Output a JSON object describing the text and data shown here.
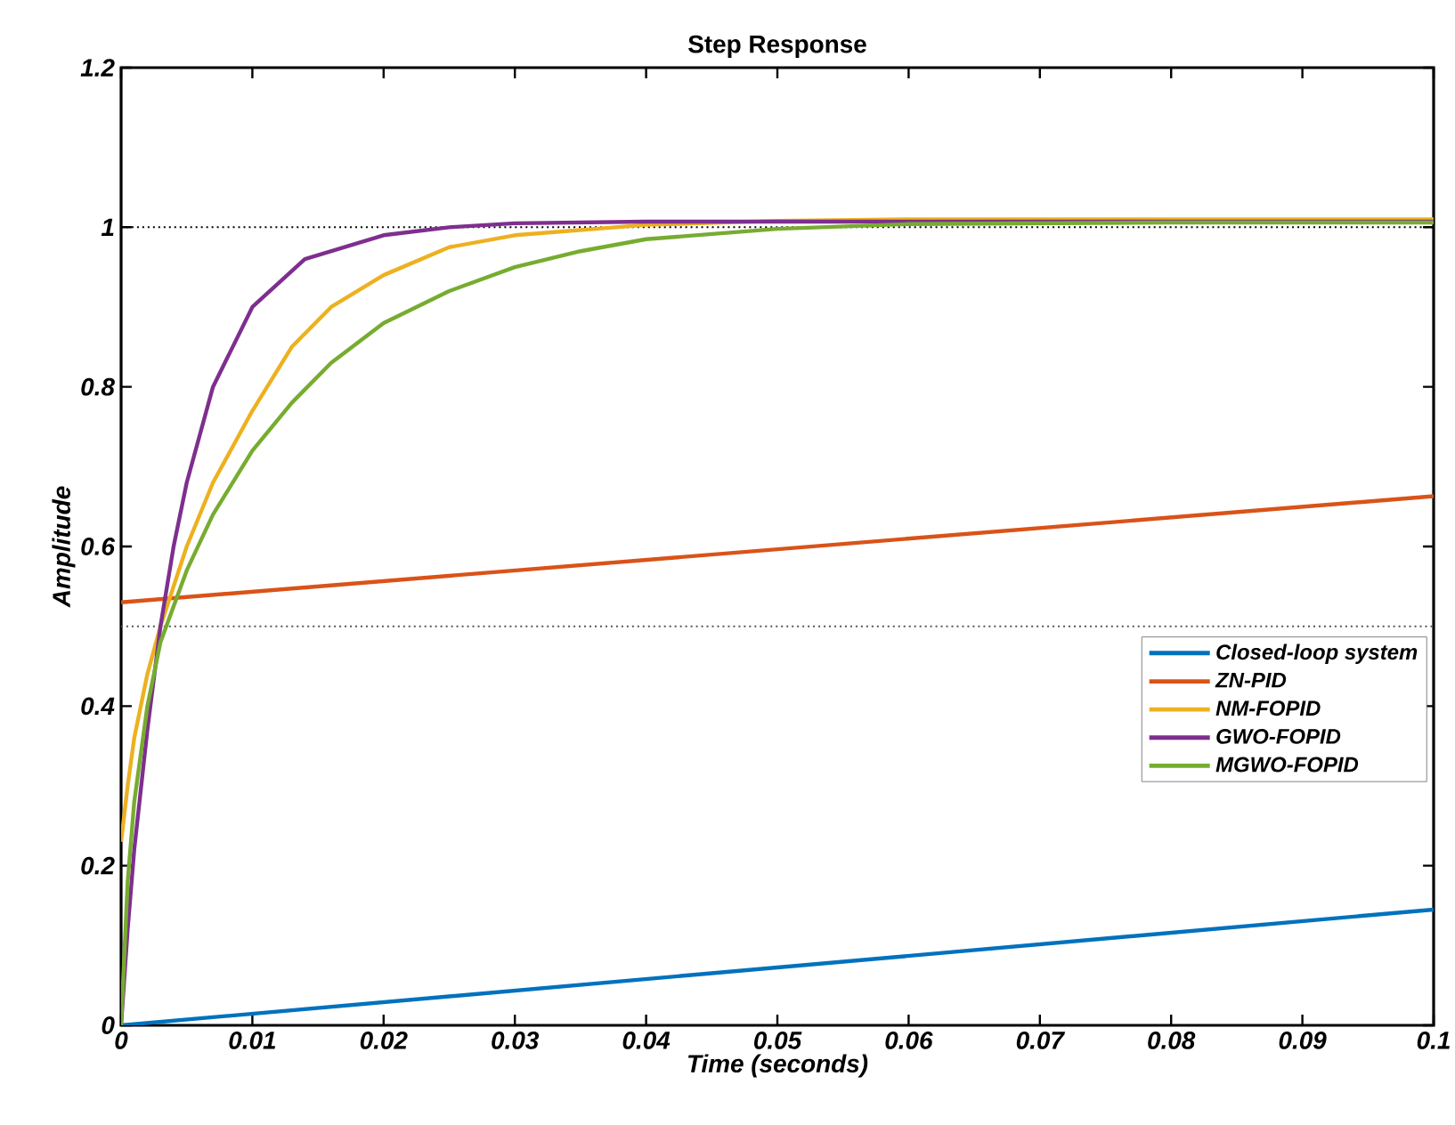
{
  "chart_data": {
    "type": "line",
    "title": "Step Response",
    "xlabel": "Time (seconds)",
    "ylabel": "Amplitude",
    "xlim": [
      0,
      0.1
    ],
    "ylim": [
      0,
      1.2
    ],
    "xticks": [
      0,
      0.01,
      0.02,
      0.03,
      0.04,
      0.05,
      0.06,
      0.07,
      0.08,
      0.09,
      0.1
    ],
    "yticks": [
      0,
      0.2,
      0.4,
      0.6,
      0.8,
      1,
      1.2
    ],
    "grid": false,
    "legend": "right",
    "line_style": "solid",
    "ref_lines": [
      {
        "axis": "y",
        "value": 1,
        "color": "#000000",
        "line_style": "dotted"
      },
      {
        "axis": "y",
        "value": 0.5,
        "color": "#555555",
        "line_style": "dotted"
      }
    ],
    "series": [
      {
        "name": "Closed-loop system",
        "color": "#0072bd",
        "x": [
          0,
          0.1
        ],
        "values": [
          0,
          0.145
        ]
      },
      {
        "name": "ZN-PID",
        "color": "#d95319",
        "x": [
          0,
          0.1
        ],
        "values": [
          0.53,
          0.663
        ]
      },
      {
        "name": "NM-FOPID",
        "color": "#edb120",
        "x": [
          0,
          0.0005,
          0.001,
          0.002,
          0.003,
          0.005,
          0.007,
          0.01,
          0.013,
          0.016,
          0.02,
          0.025,
          0.03,
          0.04,
          0.05,
          0.06,
          0.08,
          0.1
        ],
        "values": [
          0.23,
          0.3,
          0.36,
          0.44,
          0.5,
          0.6,
          0.68,
          0.77,
          0.85,
          0.9,
          0.94,
          0.975,
          0.99,
          1.003,
          1.008,
          1.01,
          1.01,
          1.01
        ]
      },
      {
        "name": "GWO-FOPID",
        "color": "#7e2f8e",
        "x": [
          0,
          0.0005,
          0.001,
          0.002,
          0.003,
          0.004,
          0.005,
          0.007,
          0.01,
          0.014,
          0.02,
          0.025,
          0.03,
          0.04,
          0.05,
          0.06,
          0.08,
          0.1
        ],
        "values": [
          0,
          0.12,
          0.22,
          0.37,
          0.5,
          0.6,
          0.68,
          0.8,
          0.9,
          0.96,
          0.99,
          1.0,
          1.005,
          1.007,
          1.007,
          1.007,
          1.007,
          1.007
        ]
      },
      {
        "name": "MGWO-FOPID",
        "color": "#77ac30",
        "x": [
          0,
          0.0005,
          0.001,
          0.002,
          0.003,
          0.005,
          0.007,
          0.01,
          0.013,
          0.016,
          0.02,
          0.025,
          0.03,
          0.035,
          0.04,
          0.05,
          0.06,
          0.08,
          0.1
        ],
        "values": [
          0,
          0.18,
          0.28,
          0.4,
          0.48,
          0.57,
          0.64,
          0.72,
          0.78,
          0.83,
          0.88,
          0.92,
          0.95,
          0.97,
          0.985,
          0.998,
          1.004,
          1.006,
          1.006
        ]
      }
    ]
  }
}
